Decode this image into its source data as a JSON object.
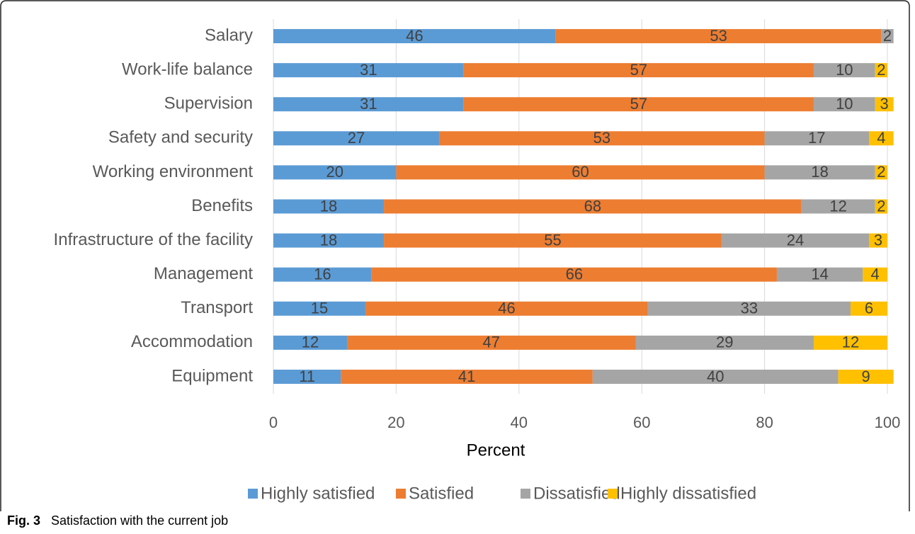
{
  "chart_data": {
    "type": "stacked_barh",
    "categories": [
      "Salary",
      "Work-life balance",
      "Supervision",
      "Safety and security",
      "Working environment",
      "Benefits",
      "Infrastructure of the facility",
      "Management",
      "Transport",
      "Accommodation",
      "Equipment"
    ],
    "series": [
      {
        "name": "Highly satisfied",
        "color": "#5b9bd5",
        "values": [
          46,
          31,
          31,
          27,
          20,
          18,
          18,
          16,
          15,
          12,
          11
        ]
      },
      {
        "name": "Satisfied",
        "color": "#ed7d31",
        "values": [
          53,
          57,
          57,
          53,
          60,
          68,
          55,
          66,
          46,
          47,
          41
        ]
      },
      {
        "name": "Dissatisfied",
        "color": "#a5a5a5",
        "values": [
          2,
          10,
          10,
          17,
          18,
          12,
          24,
          14,
          33,
          29,
          40
        ]
      },
      {
        "name": "Highly dissatisfied",
        "color": "#ffc000",
        "values": [
          null,
          2,
          3,
          4,
          2,
          2,
          3,
          4,
          6,
          12,
          9
        ]
      }
    ],
    "xlim": [
      0,
      100
    ],
    "xticks": [
      0,
      20,
      40,
      60,
      80,
      100
    ],
    "xlabel": "Percent",
    "grid": true,
    "legend": "bottom",
    "figure_label": "Fig. 3",
    "caption": "Satisfaction with the current job"
  }
}
